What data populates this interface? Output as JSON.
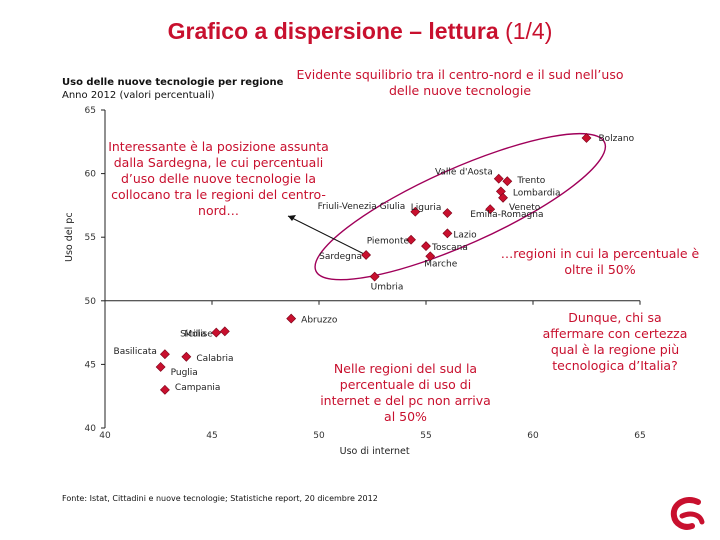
{
  "slide": {
    "title": "Grafico a dispersione – lettura",
    "page": "(1/4)"
  },
  "headline": "Evidente squilibrio tra il centro-nord e il sud nell’uso delle nuove tecnologie",
  "notes": {
    "sardegna": "Interessante è la posizione assunta dalla Sardegna, le cui percentuali d’uso delle nuove tecnologie la collocano tra le regioni del centro-nord…",
    "north": "…regioni in cui la percentuale è oltre il 50%",
    "south": "Nelle regioni del sud la percentuale di uso di internet e del pc non arriva al 50%",
    "question": "Dunque, chi sa affermare con certezza qual è la regione più tecnologica d’Italia?"
  },
  "source": "Fonte: Istat, Cittadini e nuove tecnologie; Statistiche report, 20 dicembre 2012",
  "colors": {
    "accent": "#c8102e",
    "point": "#c8102e",
    "ellipse": "#a0005a"
  },
  "chart_data": {
    "type": "scatter",
    "title": "Uso delle nuove tecnologie per regione",
    "subtitle": "Anno 2012 (valori percentuali)",
    "xlabel": "Uso di internet",
    "ylabel": "Uso del pc",
    "xlim": [
      40,
      65
    ],
    "ylim": [
      40,
      65
    ],
    "xticks": [
      40,
      45,
      50,
      55,
      60,
      65
    ],
    "yticks": [
      40,
      45,
      50,
      55,
      60,
      65
    ],
    "grid": false,
    "points": [
      {
        "label": "Bolzano",
        "x": 62.5,
        "y": 62.8
      },
      {
        "label": "Valle d'Aosta",
        "x": 58.4,
        "y": 59.6
      },
      {
        "label": "Trento",
        "x": 58.8,
        "y": 59.4
      },
      {
        "label": "Lombardia",
        "x": 58.5,
        "y": 58.6
      },
      {
        "label": "Veneto",
        "x": 58.6,
        "y": 58.1
      },
      {
        "label": "Emilia-Romagna",
        "x": 58.0,
        "y": 57.2
      },
      {
        "label": "Friuli-Venezia Giulia",
        "x": 54.5,
        "y": 57.0
      },
      {
        "label": "Liguria",
        "x": 56.0,
        "y": 56.9
      },
      {
        "label": "Lazio",
        "x": 56.0,
        "y": 55.3
      },
      {
        "label": "Piemonte",
        "x": 54.3,
        "y": 54.8
      },
      {
        "label": "Toscana",
        "x": 55.0,
        "y": 54.3
      },
      {
        "label": "Sardegna",
        "x": 52.2,
        "y": 53.6
      },
      {
        "label": "Marche",
        "x": 55.2,
        "y": 53.5
      },
      {
        "label": "Umbria",
        "x": 52.6,
        "y": 51.9
      },
      {
        "label": "Abruzzo",
        "x": 48.7,
        "y": 48.6
      },
      {
        "label": "Sicilia",
        "x": 45.2,
        "y": 47.5
      },
      {
        "label": "Molise",
        "x": 45.6,
        "y": 47.6
      },
      {
        "label": "Basilicata",
        "x": 42.8,
        "y": 45.8
      },
      {
        "label": "Calabria",
        "x": 43.8,
        "y": 45.6
      },
      {
        "label": "Puglia",
        "x": 42.6,
        "y": 44.8
      },
      {
        "label": "Campania",
        "x": 42.8,
        "y": 43.0
      }
    ]
  }
}
